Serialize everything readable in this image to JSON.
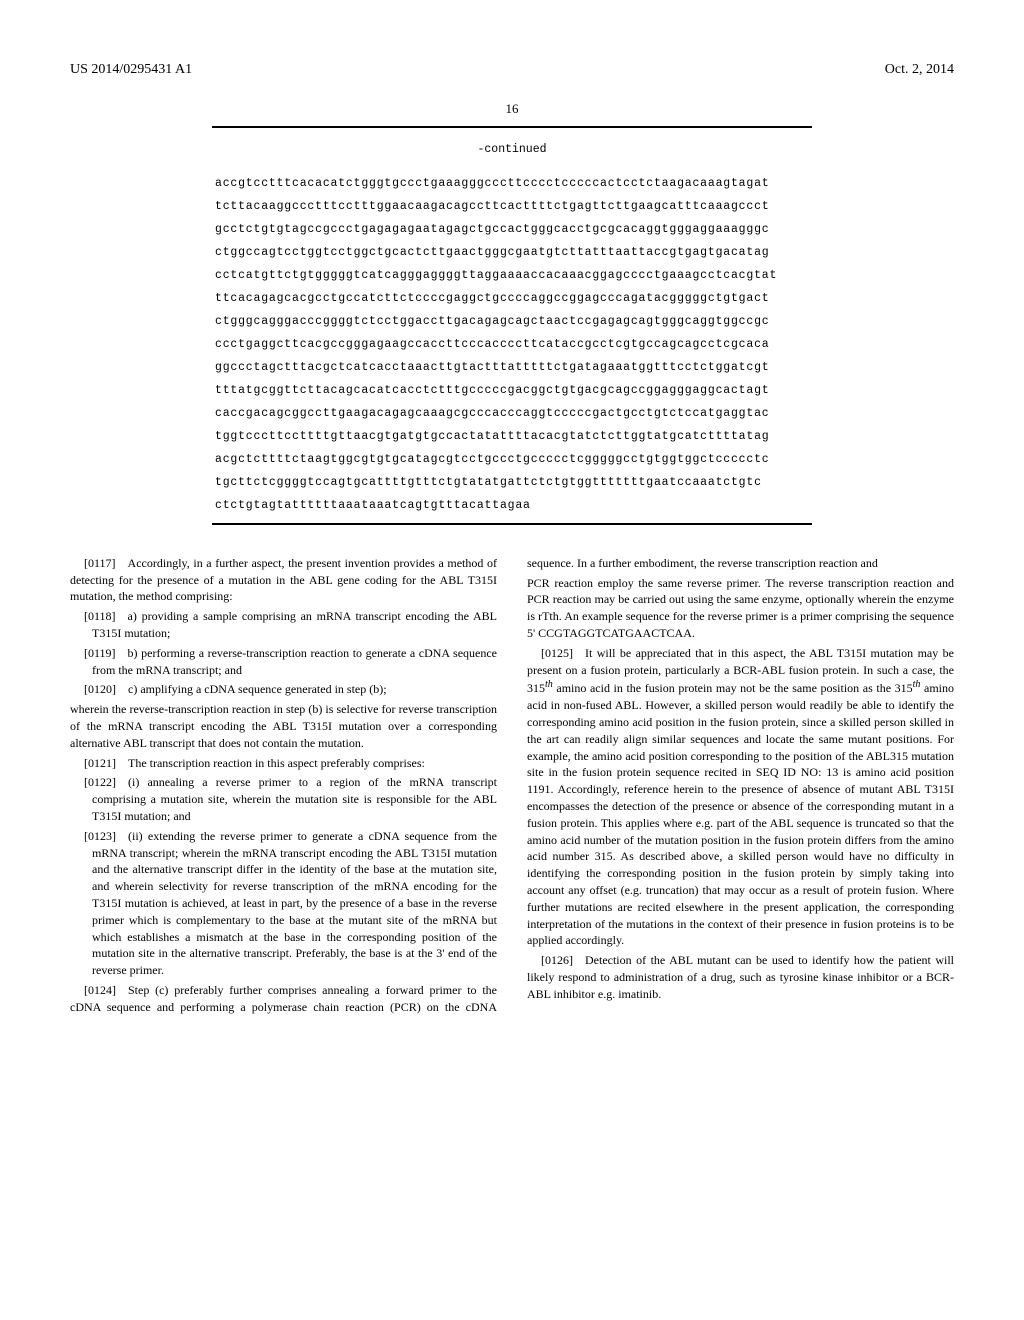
{
  "header": {
    "pubnum": "US 2014/0295431 A1",
    "pubdate": "Oct. 2, 2014"
  },
  "pagenum": "16",
  "seq": {
    "cont": "-continued",
    "lines": [
      "accgtcctttcacacatctgggtgccctgaaagggcccttcccctcccccactcctctaagacaaagtagat",
      "tcttacaaggccctttcctttggaacaagacagccttcacttttctgagttcttgaagcatttcaaagccct",
      "gcctctgtgtagccgccctgagagagaatagagctgccactgggcacctgcgcacaggtgggaggaaagggc",
      "ctggccagtcctggtcctggctgcactcttgaactgggcgaatgtcttatttaattaccgtgagtgacatag",
      "cctcatgttctgtgggggtcatcagggaggggttaggaaaaccacaaacggagcccctgaaagcctcacgtat",
      "ttcacagagcacgcctgccatcttctccccgaggctgccccaggccggagcccagatacgggggctgtgact",
      "ctgggcagggacccggggtctcctggaccttgacagagcagctaactccgagagcagtgggcaggtggccgc",
      "ccctgaggcttcacgccgggagaagccaccttcccaccccttcataccgcctcgtgccagcagcctcgcaca",
      "ggccctagctttacgctcatcacctaaacttgtactttatttttctgatagaaatggtttcctctggatcgt",
      "tttatgcggttcttacagcacatcacctctttgcccccgacggctgtgacgcagccggagggaggcactagt",
      "caccgacagcggccttgaagacagagcaaagcgcccacccaggtcccccgactgcctgtctccatgaggtac",
      "tggtcccttccttttgttaacgtgatgtgccactatattttacacgtatctcttggtatgcatcttttatag",
      "acgctcttttctaagtggcgtgtgcatagcgtcctgccctgccccctcgggggcctgtggtggctccccctc",
      "tgcttctcggggtccagtgcattttgtttctgtatatgattctctgtggtttttttgaatccaaatctgtc",
      "ctctgtagtattttttaaataaatcagtgtttacattagaa"
    ]
  },
  "paras": {
    "p0117": "[0117] Accordingly, in a further aspect, the present invention provides a method of detecting for the presence of a mutation in the ABL gene coding for the ABL T315I mutation, the method comprising:",
    "p0118": "[0118] a) providing a sample comprising an mRNA transcript encoding the ABL T315I mutation;",
    "p0119": "[0119] b) performing a reverse-transcription reaction to generate a cDNA sequence from the mRNA transcript; and",
    "p0120": "[0120] c) amplifying a cDNA sequence generated in step (b);",
    "p0120tail": "wherein the reverse-transcription reaction in step (b) is selective for reverse transcription of the mRNA transcript encoding the ABL T315I mutation over a corresponding alternative ABL transcript that does not contain the mutation.",
    "p0121": "[0121] The transcription reaction in this aspect preferably comprises:",
    "p0122": "[0122] (i) annealing a reverse primer to a region of the mRNA transcript comprising a mutation site, wherein the mutation site is responsible for the ABL T315I mutation; and",
    "p0123": "[0123] (ii) extending the reverse primer to generate a cDNA sequence from the mRNA transcript; wherein the mRNA transcript encoding the ABL T315I mutation and the alternative transcript differ in the identity of the base at the mutation site, and wherein selectivity for reverse transcription of the mRNA encoding for the T315I mutation is achieved, at least in part, by the presence of a base in the reverse primer which is complementary to the base at the mutant site of the mRNA but which establishes a mismatch at the base in the corresponding position of the mutation site in the alternative transcript. Preferably, the base is at the 3' end of the reverse primer.",
    "p0124a": "[0124] Step (c) preferably further comprises annealing a forward primer to the cDNA sequence and performing a polymerase chain reaction (PCR) on the cDNA sequence. In a further embodiment, the reverse transcription reaction and",
    "p0124b": "PCR reaction employ the same reverse primer. The reverse transcription reaction and PCR reaction may be carried out using the same enzyme, optionally wherein the enzyme is rTth. An example sequence for the reverse primer is a primer comprising the sequence 5' CCGTAGGTCATGAACTCAA.",
    "p0125a": "[0125] It will be appreciated that in this aspect, the ABL T315I mutation may be present on a fusion protein, particularly a BCR-ABL fusion protein. In such a case, the 315",
    "p0125b": " amino acid in the fusion protein may not be the same position as the 315",
    "p0125c": " amino acid in non-fused ABL. However, a skilled person would readily be able to identify the corresponding amino acid position in the fusion protein, since a skilled person skilled in the art can readily align similar sequences and locate the same mutant positions. For example, the amino acid position corresponding to the position of the ABL315 mutation site in the fusion protein sequence recited in SEQ ID NO: 13 is amino acid position 1191. Accordingly, reference herein to the presence of absence of mutant ABL T315I encompasses the detection of the presence or absence of the corresponding mutant in a fusion protein. This applies where e.g. part of the ABL sequence is truncated so that the amino acid number of the mutation position in the fusion protein differs from the amino acid number 315. As described above, a skilled person would have no difficulty in identifying the corresponding position in the fusion protein by simply taking into account any offset (e.g. truncation) that may occur as a result of protein fusion. Where further mutations are recited elsewhere in the present application, the corresponding interpretation of the mutations in the context of their presence in fusion proteins is to be applied accordingly.",
    "p0126": "[0126] Detection of the ABL mutant can be used to identify how the patient will likely respond to administration of a drug, such as tyrosine kinase inhibitor or a BCR-ABL inhibitor e.g. imatinib.",
    "th": "th"
  }
}
